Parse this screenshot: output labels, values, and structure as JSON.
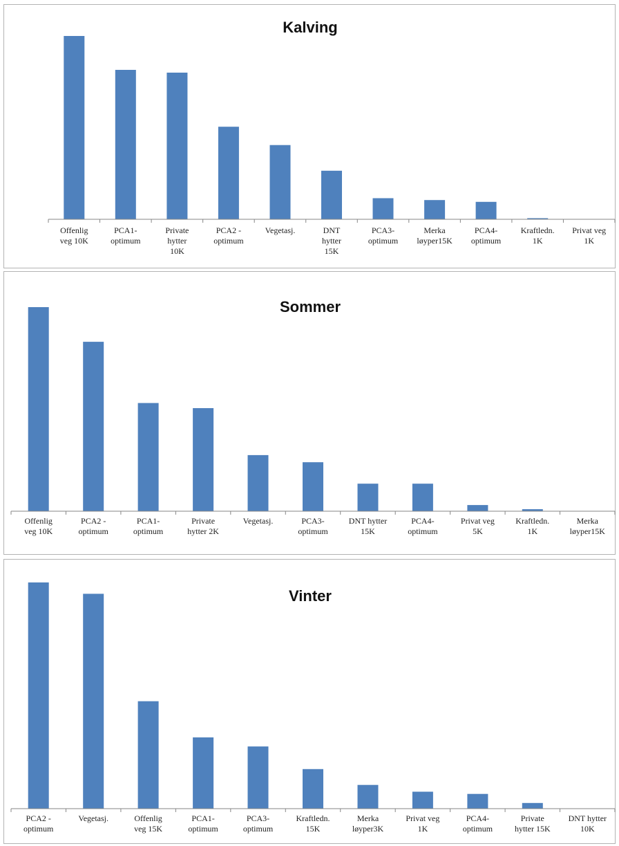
{
  "colors": {
    "bar": "#4F81BD",
    "axis": "#868686",
    "border": "#B3B3B3"
  },
  "chart_data": [
    {
      "type": "bar",
      "title": "Kalving",
      "categories": [
        [
          "Offenlig",
          "veg 10K"
        ],
        [
          "PCA1-",
          "optimum"
        ],
        [
          "Private",
          "hytter",
          "10K"
        ],
        [
          "PCA2 -",
          "optimum"
        ],
        [
          "Vegetasj."
        ],
        [
          "DNT",
          "hytter",
          "15K"
        ],
        [
          "PCA3-",
          "optimum"
        ],
        [
          "Merka",
          "løyper15K"
        ],
        [
          "PCA4-",
          "optimum"
        ],
        [
          "Kraftledn.",
          "1K"
        ],
        [
          "Privat veg",
          "1K"
        ]
      ],
      "values": [
        100,
        81.5,
        80,
        50.5,
        40.5,
        26.5,
        11.5,
        10.5,
        9.5,
        0.6,
        0
      ],
      "ylim": [
        0,
        100
      ],
      "grid": false,
      "legend": "none"
    },
    {
      "type": "bar",
      "title": "Sommer",
      "categories": [
        [
          "Offenlig",
          "veg 10K"
        ],
        [
          "PCA2 -",
          "optimum"
        ],
        [
          "PCA1-",
          "optimum"
        ],
        [
          "Private",
          "hytter 2K"
        ],
        [
          "Vegetasj."
        ],
        [
          "PCA3-",
          "optimum"
        ],
        [
          "DNT hytter",
          "15K"
        ],
        [
          "PCA4-",
          "optimum"
        ],
        [
          "Privat veg",
          "5K"
        ],
        [
          "Kraftledn.",
          "1K"
        ],
        [
          "Merka",
          "løyper15K"
        ]
      ],
      "values": [
        100,
        83,
        53,
        50.5,
        27.5,
        24,
        13.5,
        13.5,
        3,
        1,
        0
      ],
      "ylim": [
        0,
        100
      ],
      "grid": false,
      "legend": "none"
    },
    {
      "type": "bar",
      "title": "Vinter",
      "categories": [
        [
          "PCA2 -",
          "optimum"
        ],
        [
          "Vegetasj."
        ],
        [
          "Offenlig",
          "veg 15K"
        ],
        [
          "PCA1-",
          "optimum"
        ],
        [
          "PCA3-",
          "optimum"
        ],
        [
          "Kraftledn.",
          "15K"
        ],
        [
          "Merka",
          "løyper3K"
        ],
        [
          "Privat veg",
          "1K"
        ],
        [
          "PCA4-",
          "optimum"
        ],
        [
          "Private",
          "hytter 15K"
        ],
        [
          "DNT hytter",
          "10K"
        ]
      ],
      "values": [
        100,
        95,
        47.5,
        31.5,
        27.5,
        17.5,
        10.5,
        7.5,
        6.5,
        2.5,
        0
      ],
      "ylim": [
        0,
        100
      ],
      "grid": false,
      "legend": "none"
    }
  ]
}
